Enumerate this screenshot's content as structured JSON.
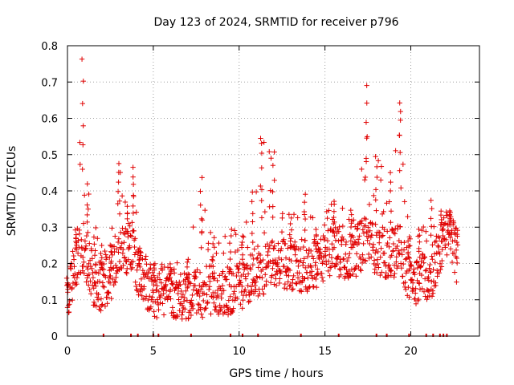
{
  "chart_data": {
    "type": "scatter",
    "title": "Day 123 of 2024, SRMTID for receiver p796",
    "xlabel": "GPS time / hours",
    "ylabel": "SRMTID / TECUs",
    "xlim": [
      0,
      24
    ],
    "ylim": [
      0,
      0.8
    ],
    "x_ticks": [
      0,
      5,
      10,
      15,
      20
    ],
    "x_tick_labels": [
      "0",
      "5",
      "10",
      "15",
      "20"
    ],
    "y_ticks": [
      0,
      0.1,
      0.2,
      0.3,
      0.4,
      0.5,
      0.6,
      0.7,
      0.8
    ],
    "y_tick_labels": [
      "0",
      "0.1",
      "0.2",
      "0.3",
      "0.4",
      "0.5",
      "0.6",
      "0.7",
      "0.8"
    ],
    "grid": true,
    "marker": "+",
    "marker_color": "#e00000",
    "series": [
      {
        "name": "SRMTID",
        "envelope": [
          {
            "x": 0.0,
            "mean": 0.12,
            "max": 0.16
          },
          {
            "x": 0.5,
            "mean": 0.2,
            "max": 0.3
          },
          {
            "x": 0.9,
            "mean": 0.25,
            "max": 0.77
          },
          {
            "x": 1.2,
            "mean": 0.2,
            "max": 0.42
          },
          {
            "x": 1.6,
            "mean": 0.14,
            "max": 0.3
          },
          {
            "x": 2.0,
            "mean": 0.14,
            "max": 0.25
          },
          {
            "x": 2.5,
            "mean": 0.16,
            "max": 0.26
          },
          {
            "x": 3.0,
            "mean": 0.25,
            "max": 0.48
          },
          {
            "x": 3.5,
            "mean": 0.22,
            "max": 0.36
          },
          {
            "x": 3.8,
            "mean": 0.25,
            "max": 0.47
          },
          {
            "x": 4.2,
            "mean": 0.15,
            "max": 0.25
          },
          {
            "x": 5.0,
            "mean": 0.12,
            "max": 0.2
          },
          {
            "x": 6.0,
            "mean": 0.12,
            "max": 0.2
          },
          {
            "x": 7.0,
            "mean": 0.1,
            "max": 0.22
          },
          {
            "x": 7.8,
            "mean": 0.12,
            "max": 0.44
          },
          {
            "x": 8.5,
            "mean": 0.13,
            "max": 0.28
          },
          {
            "x": 9.5,
            "mean": 0.12,
            "max": 0.3
          },
          {
            "x": 10.2,
            "mean": 0.14,
            "max": 0.28
          },
          {
            "x": 10.8,
            "mean": 0.17,
            "max": 0.4
          },
          {
            "x": 11.3,
            "mean": 0.18,
            "max": 0.55
          },
          {
            "x": 12.0,
            "mean": 0.2,
            "max": 0.51
          },
          {
            "x": 13.0,
            "mean": 0.2,
            "max": 0.33
          },
          {
            "x": 13.8,
            "mean": 0.18,
            "max": 0.4
          },
          {
            "x": 14.5,
            "mean": 0.2,
            "max": 0.3
          },
          {
            "x": 15.5,
            "mean": 0.24,
            "max": 0.38
          },
          {
            "x": 16.5,
            "mean": 0.22,
            "max": 0.35
          },
          {
            "x": 17.4,
            "mean": 0.26,
            "max": 0.7
          },
          {
            "x": 18.0,
            "mean": 0.24,
            "max": 0.5
          },
          {
            "x": 18.8,
            "mean": 0.22,
            "max": 0.46
          },
          {
            "x": 19.4,
            "mean": 0.25,
            "max": 0.65
          },
          {
            "x": 19.9,
            "mean": 0.15,
            "max": 0.28
          },
          {
            "x": 20.5,
            "mean": 0.16,
            "max": 0.3
          },
          {
            "x": 21.2,
            "mean": 0.17,
            "max": 0.38
          },
          {
            "x": 21.8,
            "mean": 0.25,
            "max": 0.35
          },
          {
            "x": 22.3,
            "mean": 0.3,
            "max": 0.35
          },
          {
            "x": 22.7,
            "mean": 0.2,
            "max": 0.3
          }
        ],
        "zero_flags_hours": [
          2.1,
          3.7,
          4.1,
          5.0,
          5.3,
          7.2,
          9.5,
          10.2,
          11.1,
          13.6,
          15.8,
          18.0,
          18.6,
          19.9,
          20.9,
          21.3,
          21.7,
          21.9,
          22.1
        ]
      }
    ]
  }
}
